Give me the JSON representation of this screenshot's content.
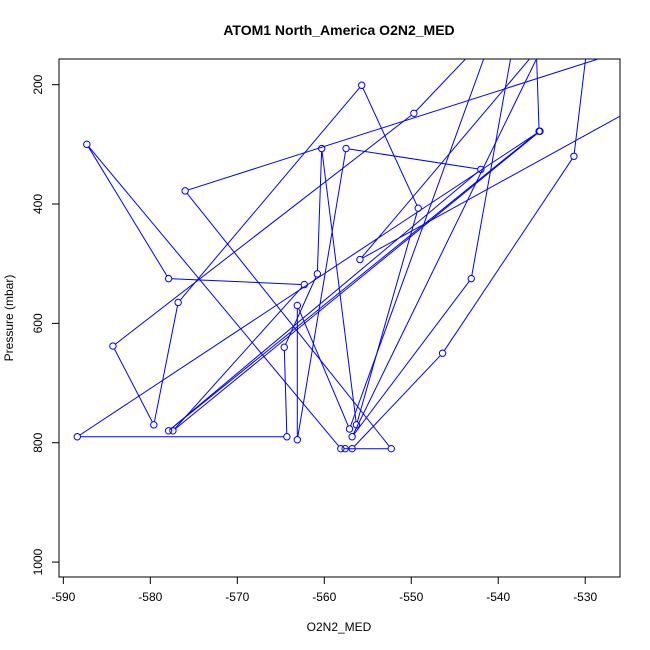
{
  "chart_data": {
    "type": "line",
    "title": "ATOM1 North_America O2N2_MED",
    "xlabel": "O2N2_MED",
    "ylabel": "Pressure (mbar)",
    "xlim": [
      -590.5,
      -526
    ],
    "ylim": [
      1025,
      157
    ],
    "y_reversed": true,
    "grid": false,
    "x_ticks": [
      -590,
      -580,
      -570,
      -560,
      -550,
      -540,
      -530
    ],
    "y_ticks": [
      200,
      400,
      600,
      800,
      1000
    ],
    "series": [
      {
        "color": "#0000ff",
        "points": [
          [
            -524.5,
            -35
          ],
          [
            -529.9,
            150
          ],
          [
            -531.3,
            320
          ],
          [
            -546.4,
            650
          ],
          [
            -556.8,
            810
          ],
          [
            -558.1,
            810
          ],
          [
            -587.3,
            300
          ],
          [
            -577.9,
            525
          ],
          [
            -562.3,
            535
          ],
          [
            -577.4,
            780
          ],
          [
            -535.2,
            278
          ],
          [
            -588.4,
            790
          ],
          [
            -564.3,
            790
          ],
          [
            -564.6,
            640
          ],
          [
            -560.8,
            517
          ],
          [
            -560.3,
            307
          ],
          [
            -556.3,
            770
          ],
          [
            -549.2,
            407
          ],
          [
            -555.7,
            201
          ],
          [
            -576.8,
            565
          ],
          [
            -579.6,
            770
          ],
          [
            -584.3,
            638
          ],
          [
            -549.7,
            248
          ],
          [
            -527.0,
            -100
          ],
          [
            -556.8,
            790
          ],
          [
            -543.1,
            525
          ],
          [
            -538.5,
            150
          ],
          [
            -535.6,
            150
          ],
          [
            -535.3,
            278
          ],
          [
            -577.9,
            780
          ],
          [
            -542.0,
            342
          ],
          [
            -557.5,
            307
          ],
          [
            -563.1,
            795
          ],
          [
            -563.1,
            570
          ],
          [
            -557.1,
            777
          ],
          [
            -541.5,
            150
          ],
          [
            -536.0,
            150
          ],
          [
            -555.9,
            493
          ],
          [
            -502.0,
            60
          ],
          [
            -527.0,
            150
          ],
          [
            -576.0,
            378
          ],
          [
            -552.3,
            810
          ],
          [
            -557.6,
            810
          ]
        ]
      }
    ]
  }
}
